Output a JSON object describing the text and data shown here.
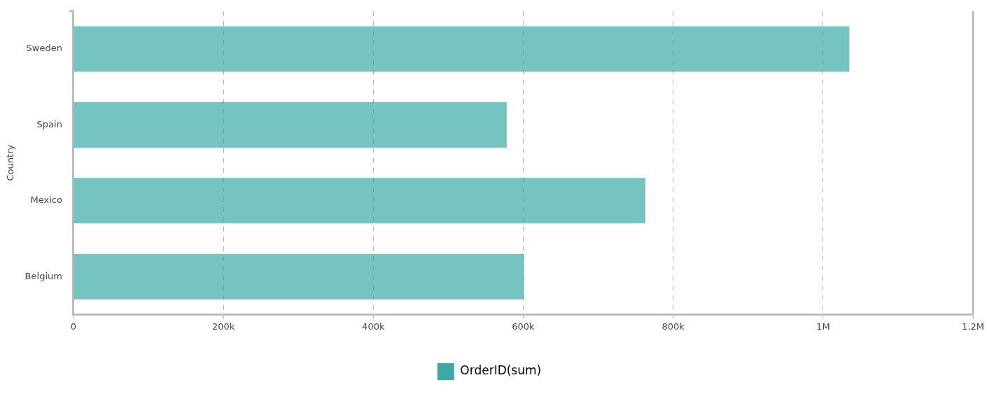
{
  "chart_data": {
    "type": "bar",
    "orientation": "horizontal",
    "ylabel": "Country",
    "categories": [
      "Sweden",
      "Spain",
      "Mexico",
      "Belgium"
    ],
    "series": [
      {
        "name": "OrderID(sum)",
        "color": "#3aaba7",
        "values": [
          1035000,
          578000,
          763000,
          601000
        ]
      }
    ],
    "xlim": [
      0,
      1200000
    ],
    "xticks": [
      0,
      {
        "value": 200000,
        "label": "200k"
      },
      {
        "value": 400000,
        "label": "400k"
      },
      {
        "value": 600000,
        "label": "600k"
      },
      {
        "value": 800000,
        "label": "800k"
      },
      {
        "value": 1000000,
        "label": "1M"
      },
      {
        "value": 1200000,
        "label": "1.2M"
      }
    ],
    "grid": "x",
    "legend": "bottom"
  }
}
